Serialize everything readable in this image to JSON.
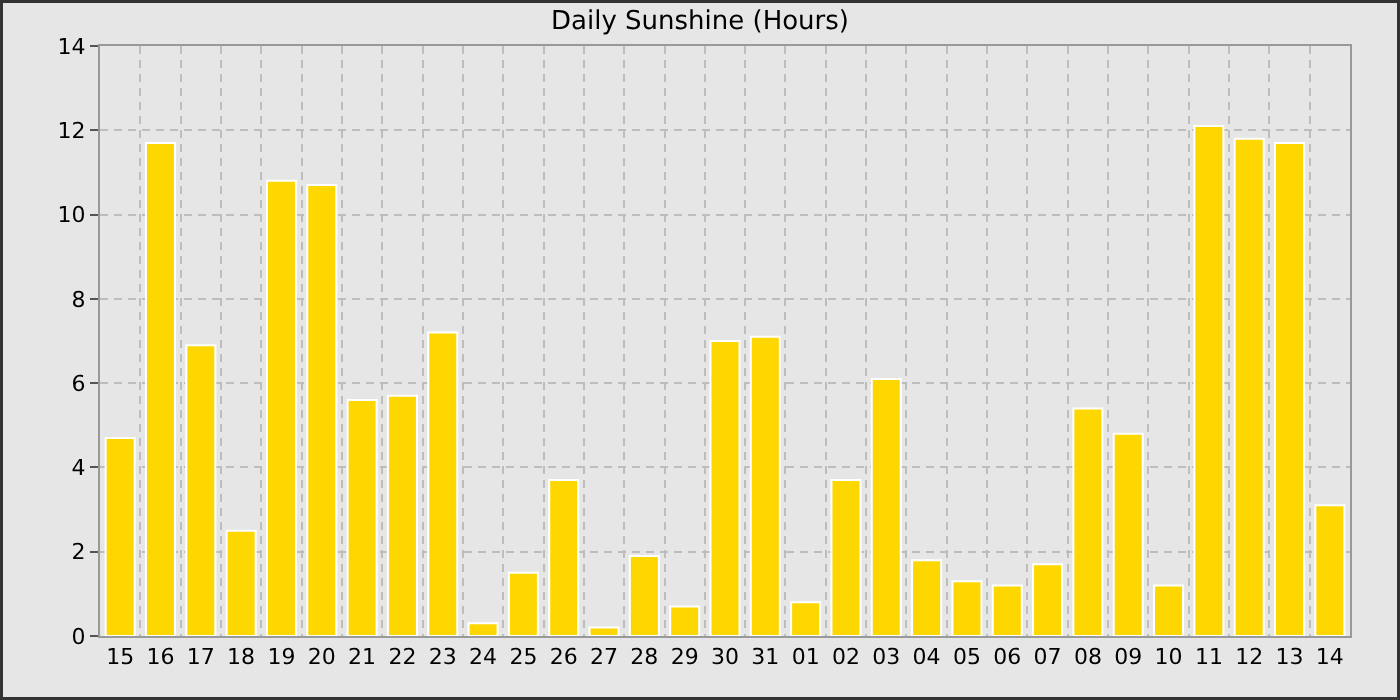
{
  "chart_data": {
    "type": "bar",
    "title": "Daily Sunshine (Hours)",
    "categories": [
      "15",
      "16",
      "17",
      "18",
      "19",
      "20",
      "21",
      "22",
      "23",
      "24",
      "25",
      "26",
      "27",
      "28",
      "29",
      "30",
      "31",
      "01",
      "02",
      "03",
      "04",
      "05",
      "06",
      "07",
      "08",
      "09",
      "10",
      "11",
      "12",
      "13",
      "14"
    ],
    "values": [
      4.7,
      11.7,
      6.9,
      2.5,
      10.8,
      10.7,
      5.6,
      5.7,
      7.2,
      0.3,
      1.5,
      3.7,
      0.2,
      1.9,
      0.7,
      7.0,
      7.1,
      0.8,
      3.7,
      6.1,
      1.8,
      1.3,
      1.2,
      1.7,
      5.4,
      4.8,
      1.2,
      12.1,
      11.8,
      11.7,
      3.1
    ],
    "color": "#ffd700",
    "ylim": [
      0,
      14
    ],
    "yticks": [
      0,
      2,
      4,
      6,
      8,
      10,
      12,
      14
    ],
    "grid": true
  }
}
